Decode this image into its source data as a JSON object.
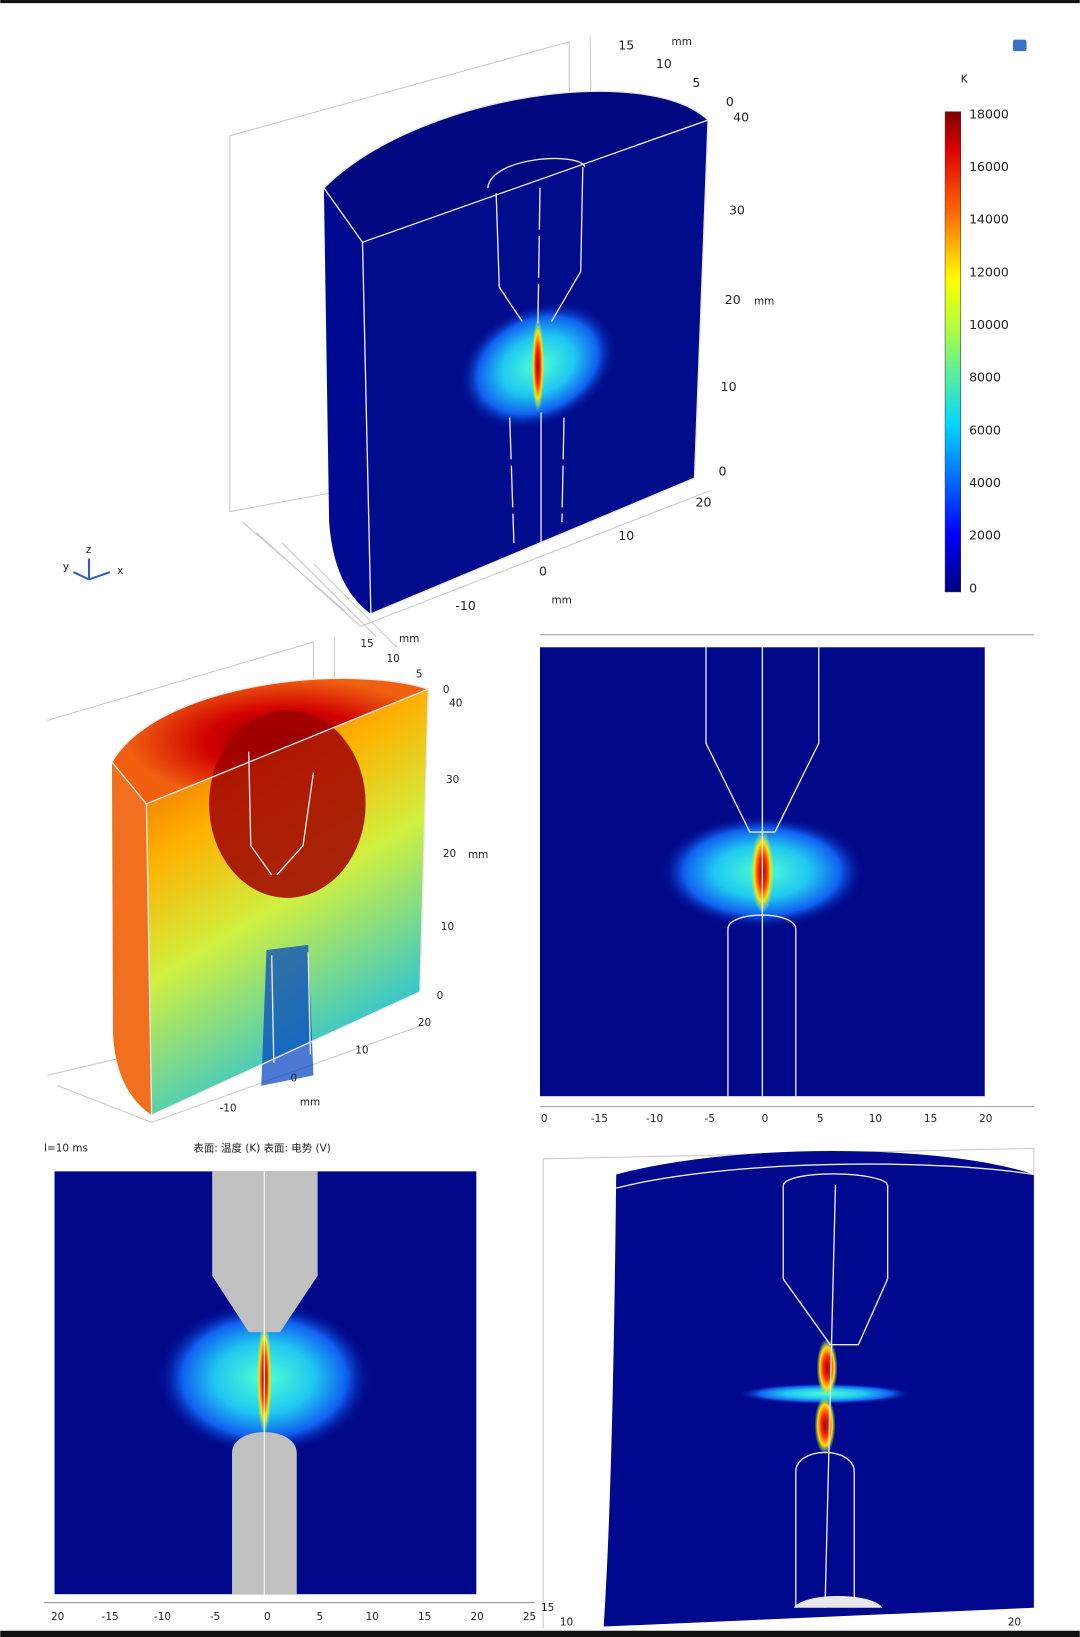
{
  "panel_3d_temperature": {
    "y_unit": "mm",
    "y_ticks": [
      "15",
      "10",
      "5",
      "0"
    ],
    "z_unit": "mm",
    "z_ticks": [
      "40",
      "30",
      "20",
      "10",
      "0"
    ],
    "x_unit": "mm",
    "x_ticks": [
      "20",
      "10",
      "0",
      "-10"
    ],
    "triad": [
      "y",
      "z",
      "x"
    ]
  },
  "colorbar": {
    "unit": "K",
    "ticks": [
      "18000",
      "16000",
      "14000",
      "12000",
      "10000",
      "8000",
      "6000",
      "4000",
      "2000",
      "0"
    ]
  },
  "panel_3d_potential": {
    "y_unit": "mm",
    "y_ticks": [
      "15",
      "10",
      "5",
      "0"
    ],
    "z_unit": "mm",
    "z_ticks": [
      "40",
      "30",
      "20",
      "10",
      "0"
    ],
    "x_unit": "mm",
    "x_ticks": [
      "20",
      "10",
      "0",
      "-10"
    ]
  },
  "panel_2d_temperature": {
    "x_ticks": [
      "0",
      "-15",
      "-10",
      "-5",
      "0",
      "5",
      "10",
      "15",
      "20"
    ]
  },
  "panel_2d_overlay": {
    "time_label": "l=10 ms",
    "legend_label": "表面: 温度 (K) 表面: 电势 (V)",
    "x_ticks": [
      "20",
      "-15",
      "-10",
      "-5",
      "0",
      "5",
      "10",
      "15",
      "20",
      "25"
    ]
  },
  "panel_3d_cut": {
    "y_ticks": [
      "15",
      "10"
    ],
    "x_ticks": [
      "20"
    ]
  }
}
